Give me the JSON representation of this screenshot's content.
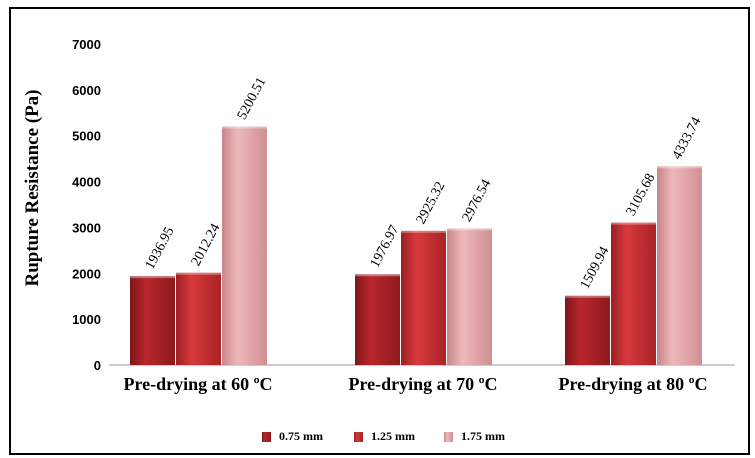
{
  "chart_data": {
    "type": "bar",
    "title": "",
    "xlabel": "",
    "ylabel": "Rupture Resistance (Pa)",
    "ylim": [
      0,
      7000
    ],
    "yticks": [
      "0",
      "1000",
      "2000",
      "3000",
      "4000",
      "5000",
      "6000",
      "7000"
    ],
    "grid": false,
    "legend_position": "bottom",
    "categories": [
      "Pre-drying at 60 ºC",
      "Pre-drying at 70 ºC",
      "Pre-drying at 80 ºC"
    ],
    "series": [
      {
        "name": "0.75 mm",
        "color": "#b8272c",
        "values": [
          1936.95,
          1976.97,
          1509.94
        ],
        "labels": [
          "1936.95",
          "1976.97",
          "1509.94"
        ]
      },
      {
        "name": "1.25 mm",
        "color": "#d2363a",
        "values": [
          2012.24,
          2925.32,
          3105.68
        ],
        "labels": [
          "2012.24",
          "2925.32",
          "3105.68"
        ]
      },
      {
        "name": "1.75 mm",
        "color": "#e7a9ad",
        "values": [
          5200.51,
          2976.54,
          4333.74
        ],
        "labels": [
          "5200.51",
          "2976.54",
          "4333.74"
        ]
      }
    ]
  }
}
